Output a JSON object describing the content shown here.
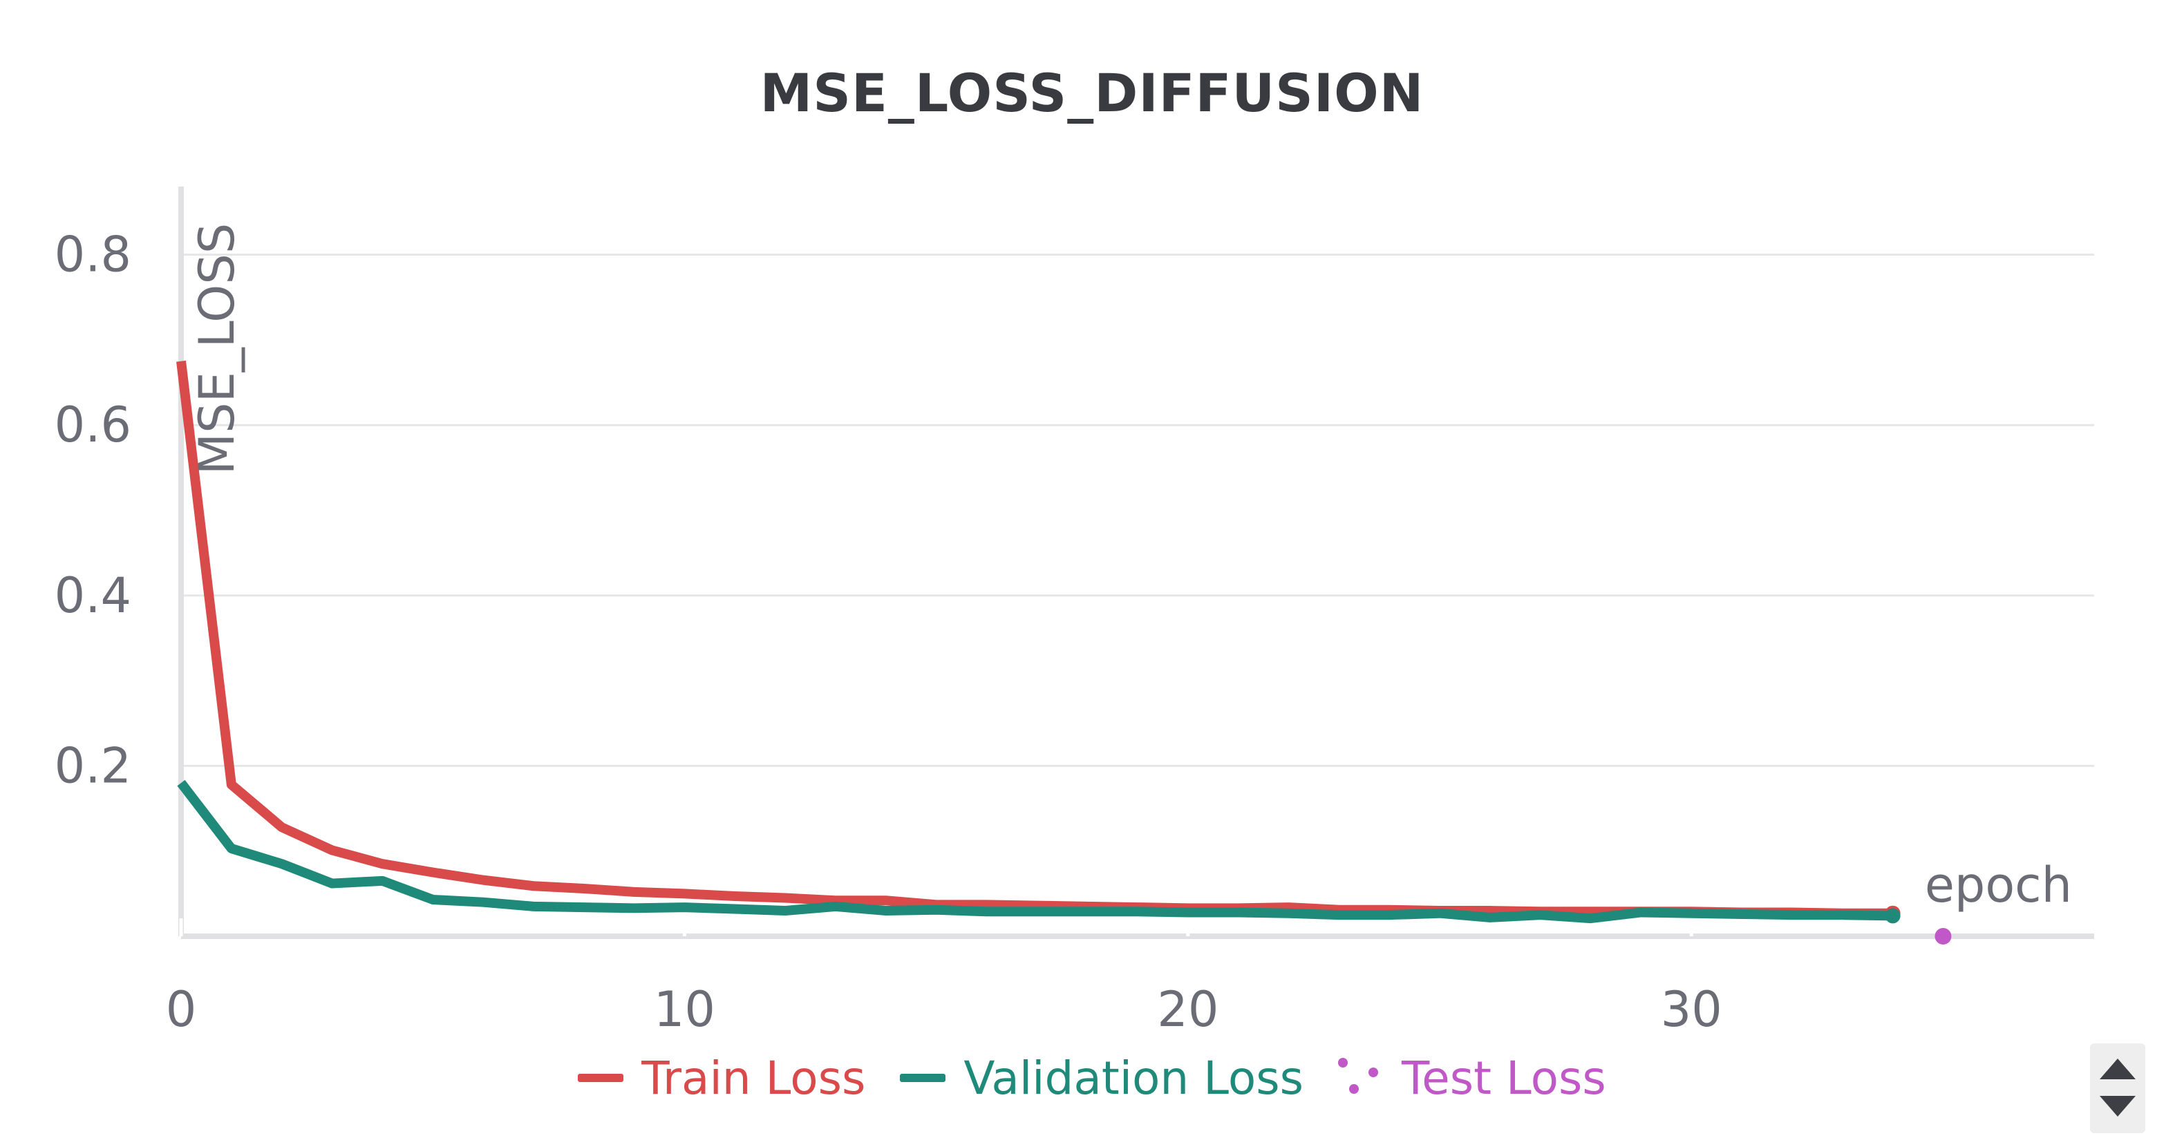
{
  "chart_data": {
    "type": "line",
    "title": "MSE_LOSS_DIFFUSION",
    "xlabel": "epoch",
    "ylabel": "MSE_LOSS",
    "xlim": [
      0,
      38
    ],
    "ylim": [
      0,
      0.88
    ],
    "x_ticks": [
      0,
      10,
      20,
      30
    ],
    "y_ticks": [
      0.2,
      0.4,
      0.6,
      0.8
    ],
    "grid": true,
    "legend_position": "bottom",
    "series": [
      {
        "name": "Train Loss",
        "color": "#d94a4a",
        "style": "line",
        "x": [
          0,
          1,
          2,
          3,
          4,
          5,
          6,
          7,
          8,
          9,
          10,
          11,
          12,
          13,
          14,
          15,
          16,
          17,
          18,
          19,
          20,
          21,
          22,
          23,
          24,
          25,
          26,
          27,
          28,
          29,
          30,
          31,
          32,
          33,
          34
        ],
        "y": [
          0.675,
          0.178,
          0.128,
          0.101,
          0.085,
          0.075,
          0.066,
          0.059,
          0.056,
          0.052,
          0.05,
          0.047,
          0.045,
          0.042,
          0.042,
          0.037,
          0.037,
          0.036,
          0.035,
          0.034,
          0.033,
          0.033,
          0.034,
          0.031,
          0.031,
          0.03,
          0.03,
          0.029,
          0.029,
          0.029,
          0.029,
          0.028,
          0.028,
          0.027,
          0.027
        ]
      },
      {
        "name": "Validation Loss",
        "color": "#1f8a7a",
        "style": "line",
        "x": [
          0,
          1,
          2,
          3,
          4,
          5,
          6,
          7,
          8,
          9,
          10,
          11,
          12,
          13,
          14,
          15,
          16,
          17,
          18,
          19,
          20,
          21,
          22,
          23,
          24,
          25,
          26,
          27,
          28,
          29,
          30,
          31,
          32,
          33,
          34
        ],
        "y": [
          0.18,
          0.103,
          0.085,
          0.062,
          0.065,
          0.043,
          0.04,
          0.035,
          0.034,
          0.033,
          0.034,
          0.032,
          0.03,
          0.035,
          0.03,
          0.031,
          0.029,
          0.029,
          0.029,
          0.029,
          0.028,
          0.028,
          0.027,
          0.025,
          0.025,
          0.027,
          0.022,
          0.025,
          0.021,
          0.028,
          0.027,
          0.026,
          0.025,
          0.025,
          0.024
        ]
      },
      {
        "name": "Test Loss",
        "color": "#c158c8",
        "style": "points",
        "x": [
          35
        ],
        "y": [
          0.0
        ]
      }
    ]
  }
}
